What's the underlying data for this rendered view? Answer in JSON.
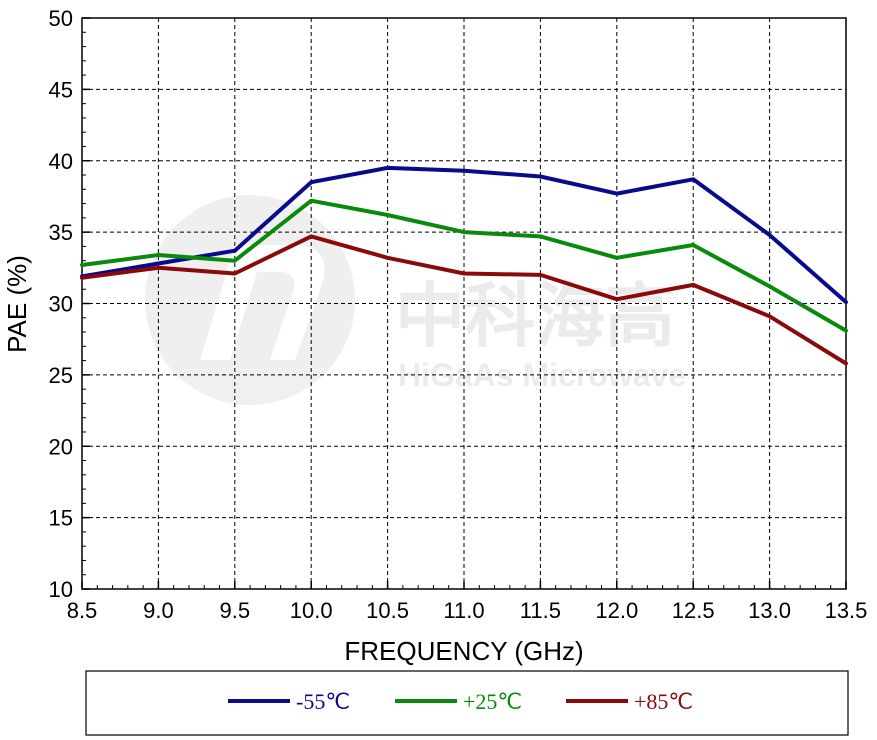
{
  "chart_data": {
    "type": "line",
    "xlabel": "FREQUENCY (GHz)",
    "ylabel": "PAE (%)",
    "xlim": [
      8.5,
      13.5
    ],
    "ylim": [
      10,
      50
    ],
    "x_ticks": [
      "8.5",
      "9.0",
      "9.5",
      "10.0",
      "10.5",
      "11.0",
      "11.5",
      "12.0",
      "12.5",
      "13.0",
      "13.5"
    ],
    "y_ticks": [
      "10",
      "15",
      "20",
      "25",
      "30",
      "35",
      "40",
      "45",
      "50"
    ],
    "grid": true,
    "legend_position": "bottom",
    "x": [
      8.5,
      9.0,
      9.5,
      10.0,
      10.5,
      11.0,
      11.5,
      12.0,
      12.5,
      13.0,
      13.5
    ],
    "series": [
      {
        "name": "-55℃",
        "color": "#0a0a8c",
        "values": [
          31.9,
          32.8,
          33.7,
          38.5,
          39.5,
          39.3,
          38.9,
          37.7,
          38.7,
          34.8,
          30.1
        ]
      },
      {
        "name": "+25℃",
        "color": "#0a8a0a",
        "values": [
          32.7,
          33.4,
          33.0,
          37.2,
          36.2,
          35.0,
          34.7,
          33.2,
          34.1,
          31.2,
          28.1
        ]
      },
      {
        "name": "+85℃",
        "color": "#8a0a0a",
        "values": [
          31.8,
          32.5,
          32.1,
          34.7,
          33.2,
          32.1,
          32.0,
          30.3,
          31.3,
          29.1,
          25.8
        ]
      }
    ]
  },
  "watermark": {
    "title": "中科海高",
    "subtitle": "HiGaAs Microwave"
  }
}
